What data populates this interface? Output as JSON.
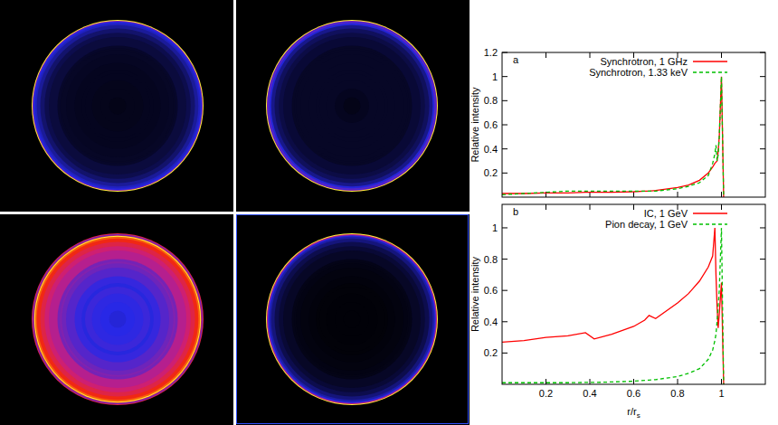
{
  "chart_data": [
    {
      "type": "line",
      "title": "a",
      "ylabel": "Relative intensity",
      "x": [
        0,
        0.1,
        0.2,
        0.3,
        0.38,
        0.42,
        0.5,
        0.6,
        0.65,
        0.67,
        0.7,
        0.8,
        0.85,
        0.9,
        0.94,
        0.96,
        0.97,
        0.975,
        0.98,
        0.985,
        0.99,
        1.0,
        1.01
      ],
      "xlim": [
        0,
        1.2
      ],
      "ylim": [
        0,
        1.2
      ],
      "xticks": [
        0.2,
        0.4,
        0.6,
        0.8,
        1
      ],
      "yticks": [
        0.2,
        0.4,
        0.6,
        0.8,
        1,
        1.2
      ],
      "tick_labels": "y",
      "legend": "upper right",
      "grid": false,
      "series": [
        {
          "name": "Synchrotron, 1 GHz",
          "color": "#ff0000",
          "line_style": "solid",
          "values": [
            0.03,
            0.03,
            0.035,
            0.035,
            0.04,
            0.04,
            0.04,
            0.045,
            0.05,
            0.05,
            0.055,
            0.08,
            0.1,
            0.14,
            0.2,
            0.25,
            0.28,
            0.29,
            0.3,
            0.38,
            0.5,
            1.0,
            0
          ]
        },
        {
          "name": "Synchrotron, 1.33 keV",
          "color": "#00c000",
          "line_style": "dashed",
          "values": [
            0.02,
            0.03,
            0.04,
            0.05,
            0.05,
            0.05,
            0.05,
            0.05,
            0.05,
            0.05,
            0.05,
            0.07,
            0.09,
            0.12,
            0.18,
            0.28,
            0.36,
            0.43,
            0.3,
            0.35,
            0.5,
            1.0,
            0
          ]
        }
      ]
    },
    {
      "type": "line",
      "title": "b",
      "ylabel": "Relative intensity",
      "xlabel": "r/rs",
      "x": [
        0,
        0.1,
        0.2,
        0.3,
        0.38,
        0.42,
        0.5,
        0.6,
        0.65,
        0.67,
        0.7,
        0.8,
        0.85,
        0.9,
        0.94,
        0.96,
        0.97,
        0.975,
        0.98,
        0.985,
        0.99,
        1.0,
        1.01
      ],
      "xlim": [
        0,
        1.2
      ],
      "ylim": [
        0,
        1.15
      ],
      "xticks": [
        0.2,
        0.4,
        0.6,
        0.8,
        1
      ],
      "yticks": [
        0.2,
        0.4,
        0.6,
        0.8,
        1
      ],
      "legend": "upper right",
      "grid": false,
      "series": [
        {
          "name": "IC, 1 GeV",
          "color": "#ff0000",
          "line_style": "solid",
          "values": [
            0.27,
            0.28,
            0.3,
            0.31,
            0.33,
            0.29,
            0.32,
            0.37,
            0.41,
            0.44,
            0.42,
            0.52,
            0.58,
            0.66,
            0.75,
            0.82,
            1.0,
            0.7,
            0.5,
            0.36,
            0.45,
            0.65,
            0
          ]
        },
        {
          "name": "Pion decay, 1 GeV",
          "color": "#00c000",
          "line_style": "dashed",
          "values": [
            0.01,
            0.01,
            0.01,
            0.01,
            0.012,
            0.012,
            0.015,
            0.02,
            0.025,
            0.027,
            0.03,
            0.05,
            0.07,
            0.1,
            0.16,
            0.22,
            0.28,
            0.32,
            0.4,
            0.5,
            0.6,
            1.0,
            0
          ]
        }
      ]
    }
  ]
}
